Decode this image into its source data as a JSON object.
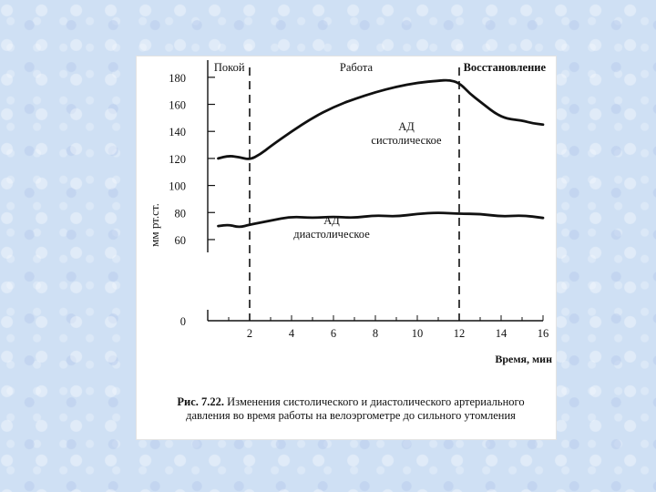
{
  "chart_data": {
    "type": "line",
    "ylabel": "мм рт.ст.",
    "xlabel": "Время, мин",
    "x_ticks": [
      2,
      4,
      6,
      8,
      10,
      12,
      14,
      16
    ],
    "y_ticks": [
      0,
      60,
      80,
      100,
      120,
      140,
      160,
      180
    ],
    "xlim": [
      0,
      16
    ],
    "ylim": [
      0,
      190
    ],
    "y_axis_break": true,
    "grid": false,
    "phases": [
      {
        "label": "Покой",
        "x": 0.3
      },
      {
        "label": "Работа",
        "x": 6.3
      },
      {
        "label": "Восстановление",
        "x": 12.2
      }
    ],
    "phase_boundaries": [
      2,
      12
    ],
    "series": [
      {
        "name": "АД систолическое",
        "x": [
          0.5,
          1.0,
          1.5,
          2.0,
          2.5,
          3.0,
          4.0,
          5.0,
          6.0,
          7.0,
          8.0,
          9.0,
          10.0,
          11.0,
          11.5,
          12.0,
          12.5,
          13.0,
          14.0,
          15.0,
          15.5,
          16.0
        ],
        "values": [
          120,
          122,
          121,
          119,
          123,
          129,
          140,
          150,
          158,
          164,
          169,
          173,
          176,
          177.5,
          178,
          176,
          168,
          162,
          150,
          148,
          146,
          145
        ]
      },
      {
        "name": "АД диастолическое",
        "x": [
          0.5,
          1.0,
          1.5,
          2.0,
          3.0,
          4.0,
          5.0,
          6.0,
          7.0,
          8.0,
          9.0,
          10.0,
          11.0,
          12.0,
          13.0,
          14.0,
          15.0,
          16.0
        ],
        "values": [
          70,
          71,
          69,
          71,
          74,
          77,
          76,
          77,
          76,
          78,
          77,
          79,
          80,
          79,
          79,
          77,
          78,
          76
        ]
      }
    ]
  },
  "series_labels": {
    "systolic_line1": "АД",
    "systolic_line2": "систолическое",
    "diastolic_line1": "АД",
    "diastolic_line2": "диастолическое"
  },
  "caption": {
    "prefix": "Рис. 7.22.",
    "text": "Изменения систолического и диастолического артериального давления во время работы на велоэргометре до сильного утомления"
  }
}
